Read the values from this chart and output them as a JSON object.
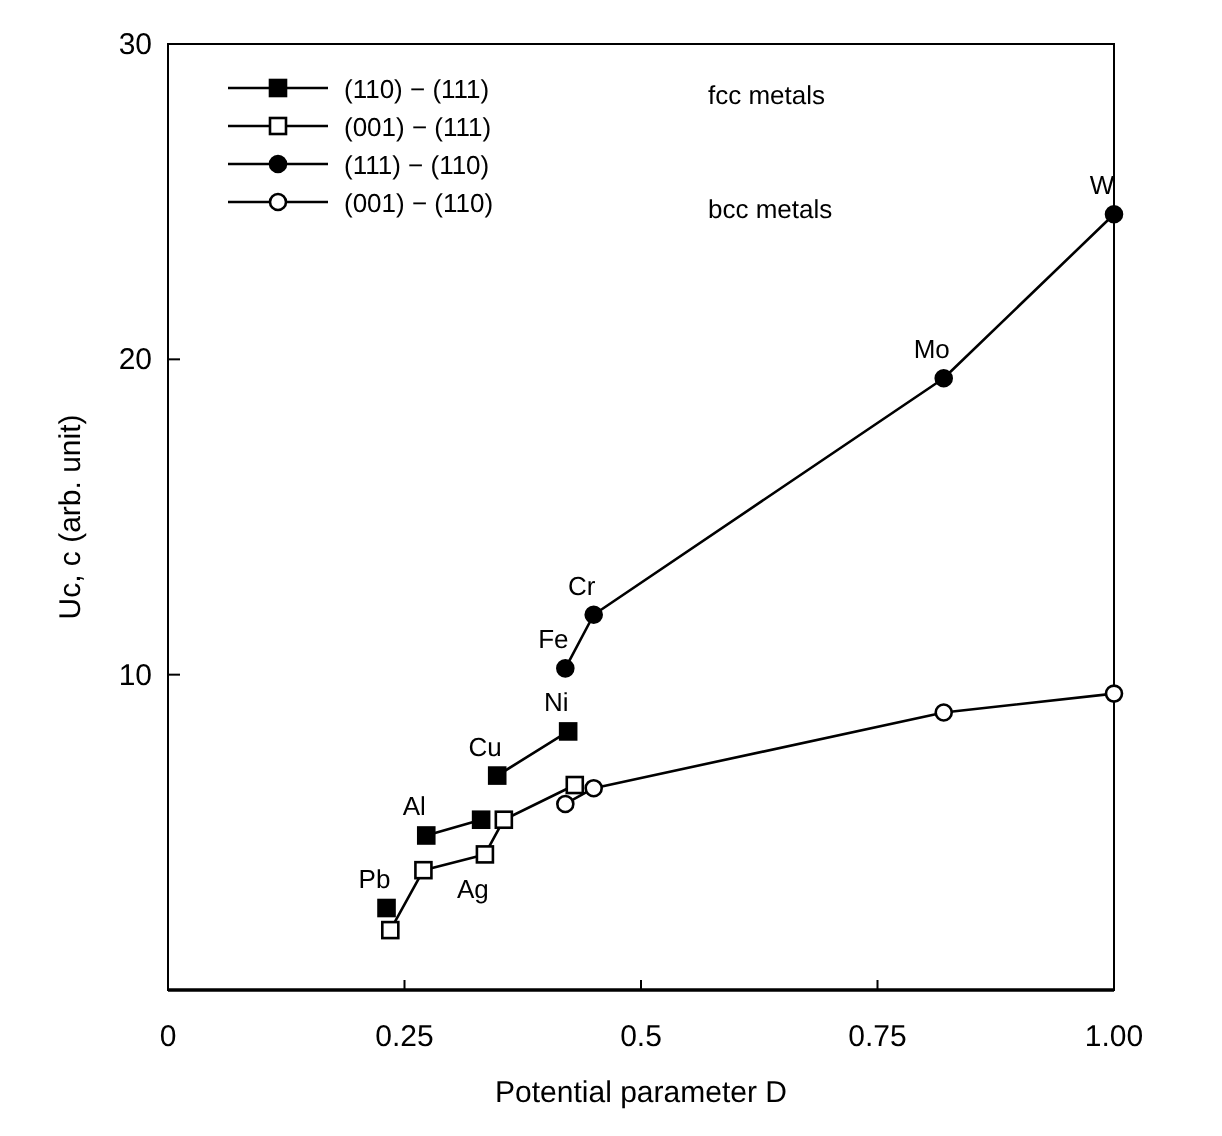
{
  "chart_data": {
    "type": "line",
    "xlabel": "Potential parameter D",
    "ylabel": "Uc, c (arb. unit)",
    "xlim": [
      0,
      1
    ],
    "ylim": [
      0,
      30
    ],
    "xticks": [
      {
        "value": 0,
        "label": "0"
      },
      0.25,
      0.5,
      0.75,
      {
        "value": 1,
        "label": "1.00"
      }
    ],
    "yticks": [
      {
        "value": 0,
        "label": null
      },
      10,
      20,
      30
    ],
    "grid": false,
    "legend": "top left",
    "series": [
      {
        "name": "(110) − (111)",
        "color": "#000000",
        "marker": "square",
        "x": [
          0.231,
          0.25,
          0.273,
          0.331,
          0.34,
          0.348,
          0.423
        ],
        "values": [
          2.6,
          null,
          4.9,
          5.4,
          null,
          6.8,
          8.2
        ]
      },
      {
        "name": "(001) − (111)",
        "color": "#000000",
        "marker": "square",
        "colors": [
          "#ffffff",
          "#ffffff",
          "#ffffff",
          "#ffffff",
          "#ffffff"
        ],
        "x": [
          0.235,
          0.27,
          0.335,
          0.355,
          0.43
        ],
        "values": [
          1.9,
          3.8,
          4.3,
          5.4,
          6.5
        ]
      },
      {
        "name": "(111) − (110)",
        "color": "#000000",
        "marker": "circle",
        "x": [
          0.42,
          0.45,
          0.82,
          1.0
        ],
        "values": [
          10.2,
          11.9,
          19.4,
          24.6
        ]
      },
      {
        "name": "(001) − (110)",
        "color": "#000000",
        "marker": "circle",
        "colors": [
          "#ffffff",
          "#ffffff",
          "#ffffff",
          "#ffffff"
        ],
        "x": [
          0.42,
          0.45,
          0.82,
          1.0
        ],
        "values": [
          5.9,
          6.4,
          8.8,
          9.4
        ]
      }
    ],
    "annotations": [
      "fcc metals",
      "bcc metals",
      {
        "text": "Pb",
        "x": 0.231,
        "y": 2.6
      },
      {
        "text": "Al",
        "x": 0.273,
        "y": 4.9
      },
      {
        "text": "Ag",
        "x": 0.335,
        "y": 4.3
      },
      {
        "text": "Cu",
        "x": 0.348,
        "y": 6.8
      },
      {
        "text": "Ni",
        "x": 0.423,
        "y": 8.2
      },
      {
        "text": "Fe",
        "x": 0.42,
        "y": 10.2
      },
      {
        "text": "Cr",
        "x": 0.45,
        "y": 11.9
      },
      {
        "text": "Mo",
        "x": 0.82,
        "y": 19.4
      },
      {
        "text": "W",
        "x": 1.0,
        "y": 24.6
      }
    ]
  }
}
